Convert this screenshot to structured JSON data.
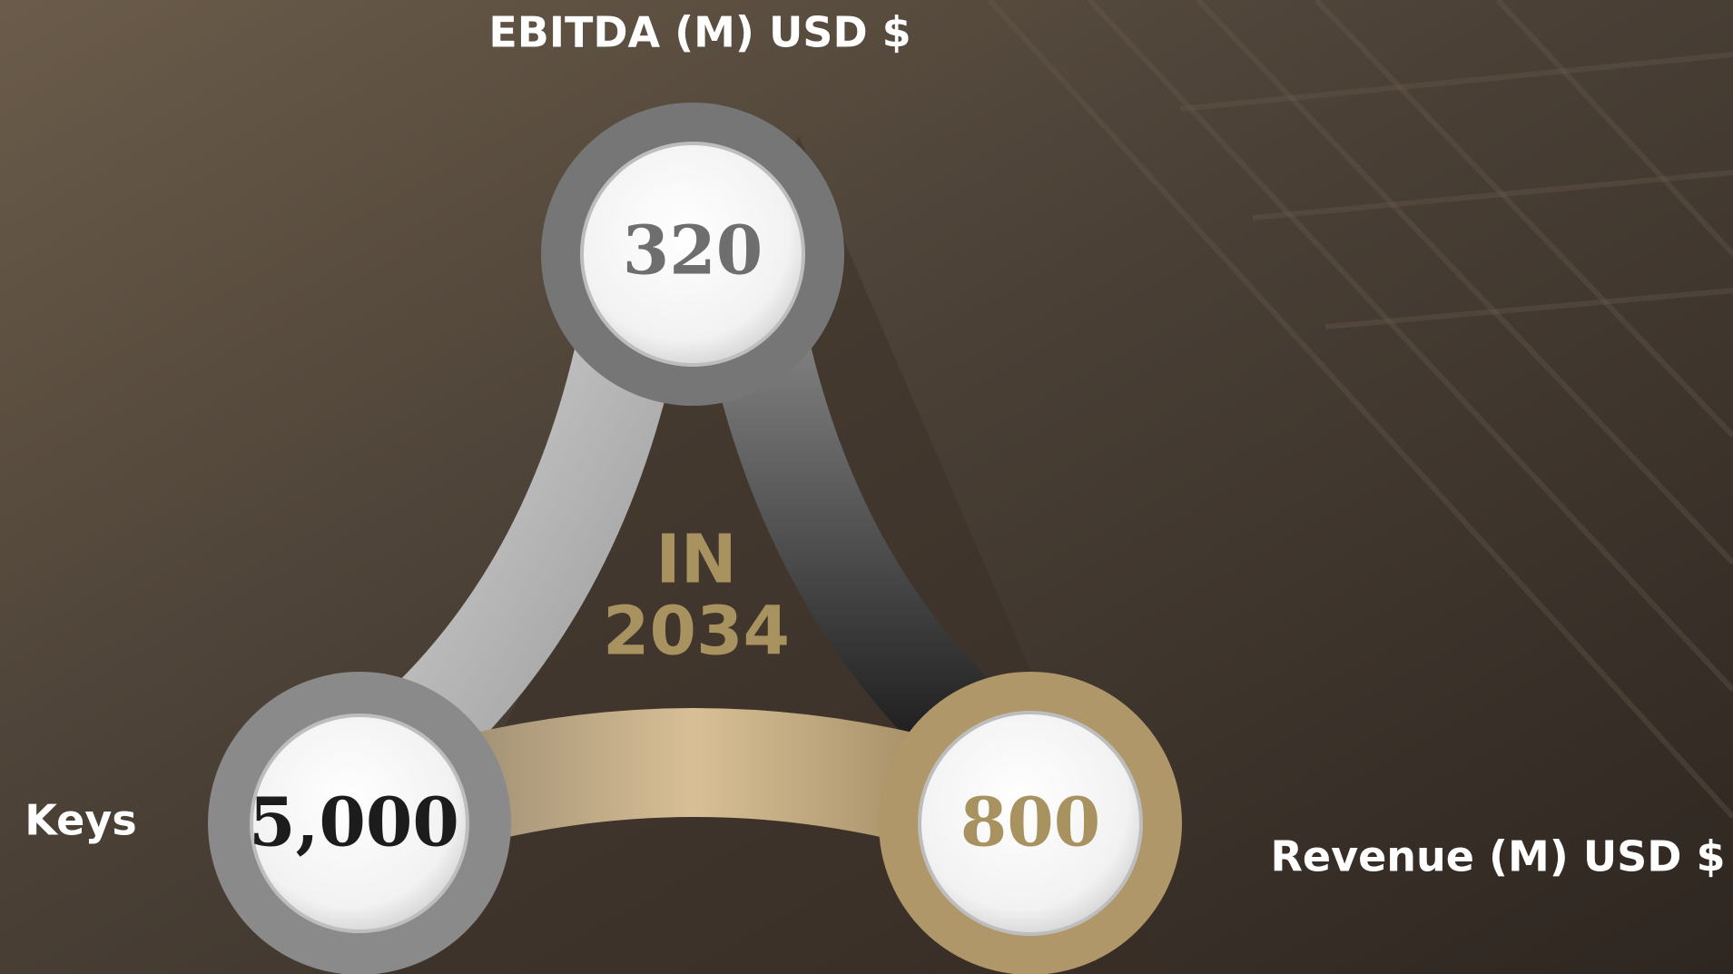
{
  "title": "EBITDA (M) USD $",
  "center": {
    "line1": "IN",
    "line2": "2034"
  },
  "metrics": [
    {
      "value": "320",
      "label": "EBITDA (M) USD $"
    },
    {
      "value": "5,000",
      "label": "Keys"
    },
    {
      "value": "800",
      "label": "Revenue (M) USD $"
    }
  ]
}
